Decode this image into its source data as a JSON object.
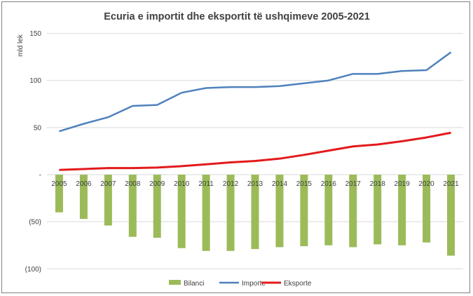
{
  "chart_data": {
    "type": "bar",
    "title": "Ecuria e importit dhe eksportit të ushqimeve 2005-2021",
    "ylabel": "mld lek",
    "xlabel": "",
    "ylim": [
      -100,
      150
    ],
    "yticks": [
      {
        "value": 150,
        "label": "150"
      },
      {
        "value": 100,
        "label": "100"
      },
      {
        "value": 50,
        "label": "50"
      },
      {
        "value": 0,
        "label": "-"
      },
      {
        "value": -50,
        "label": "(50)"
      },
      {
        "value": -100,
        "label": "(100)"
      }
    ],
    "grid": true,
    "legend_position": "bottom",
    "categories": [
      "2005",
      "2006",
      "2007",
      "2008",
      "2009",
      "2010",
      "2011",
      "2012",
      "2013",
      "2014",
      "2015",
      "2016",
      "2017",
      "2018",
      "2019",
      "2020",
      "2021"
    ],
    "series": [
      {
        "name": "Bilanci",
        "type": "bar",
        "color": "#9BBB59",
        "values": [
          -40,
          -47,
          -54,
          -66,
          -67,
          -78,
          -81,
          -81,
          -79,
          -77,
          -76,
          -75,
          -77,
          -74,
          -75,
          -72,
          -86
        ]
      },
      {
        "name": "Importe",
        "type": "line",
        "color": "#4F81BD",
        "values": [
          46,
          54,
          61,
          73,
          74,
          87,
          92,
          93,
          93,
          94,
          97,
          100,
          107,
          107,
          110,
          111,
          130
        ]
      },
      {
        "name": "Eksporte",
        "type": "line",
        "color": "#E31A1C",
        "values": [
          5,
          6,
          7,
          7,
          7.5,
          9,
          11,
          13,
          14.5,
          17,
          21,
          25.5,
          30,
          32,
          35.5,
          39.5,
          44.5
        ]
      }
    ]
  }
}
